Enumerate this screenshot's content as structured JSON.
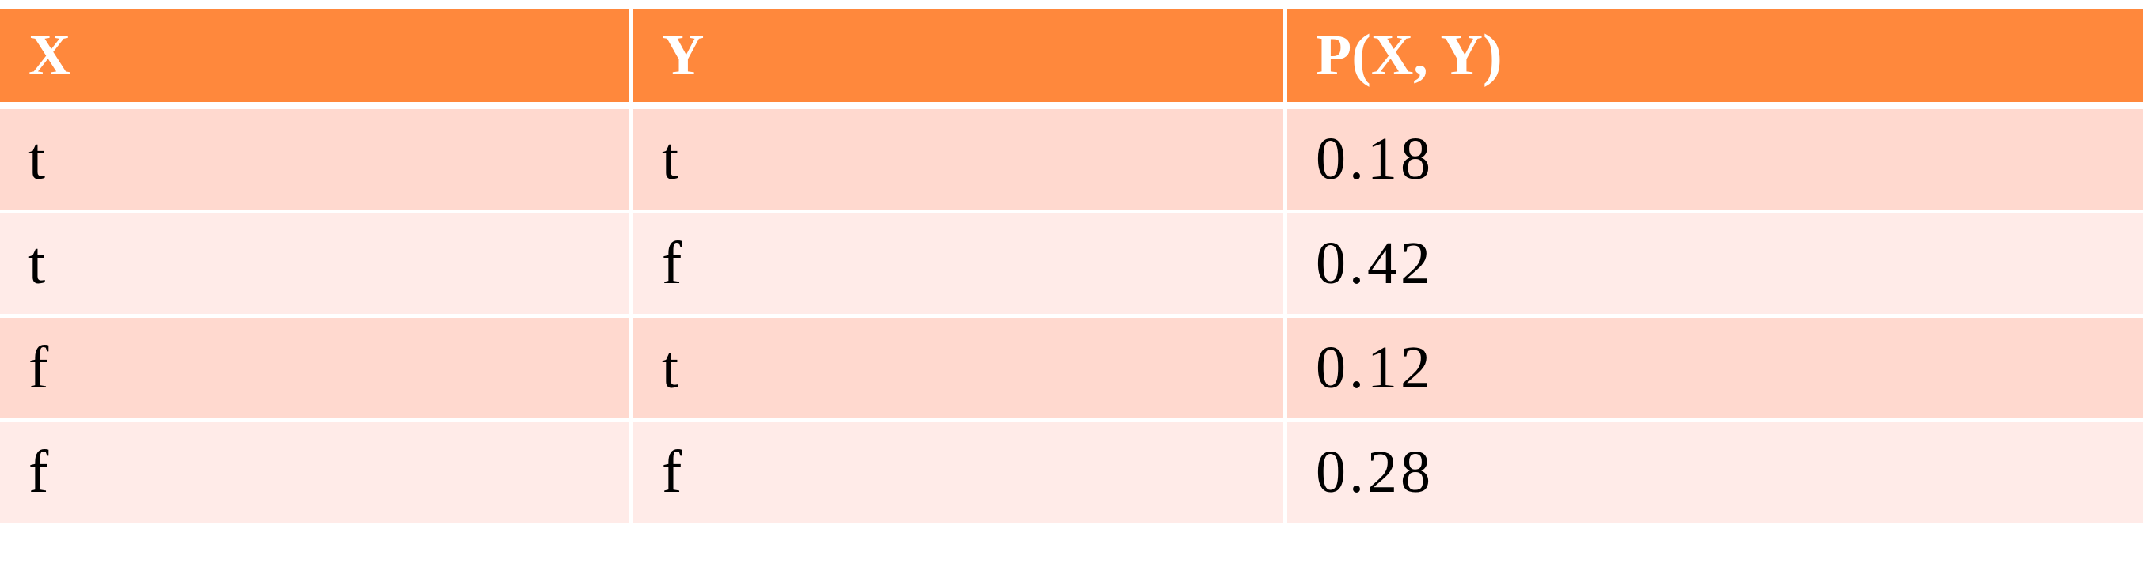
{
  "table": {
    "headers": [
      "X",
      "Y",
      "P(X, Y)"
    ],
    "rows": [
      [
        "t",
        "t",
        "0.18"
      ],
      [
        "t",
        "f",
        "0.42"
      ],
      [
        "f",
        "t",
        "0.12"
      ],
      [
        "f",
        "f",
        "0.28"
      ]
    ]
  },
  "colors": {
    "header_bg": "#FF883C",
    "header_text": "#FFFFFF",
    "row_band_dark": "#FFD9CF",
    "row_band_light": "#FFEBE8"
  }
}
